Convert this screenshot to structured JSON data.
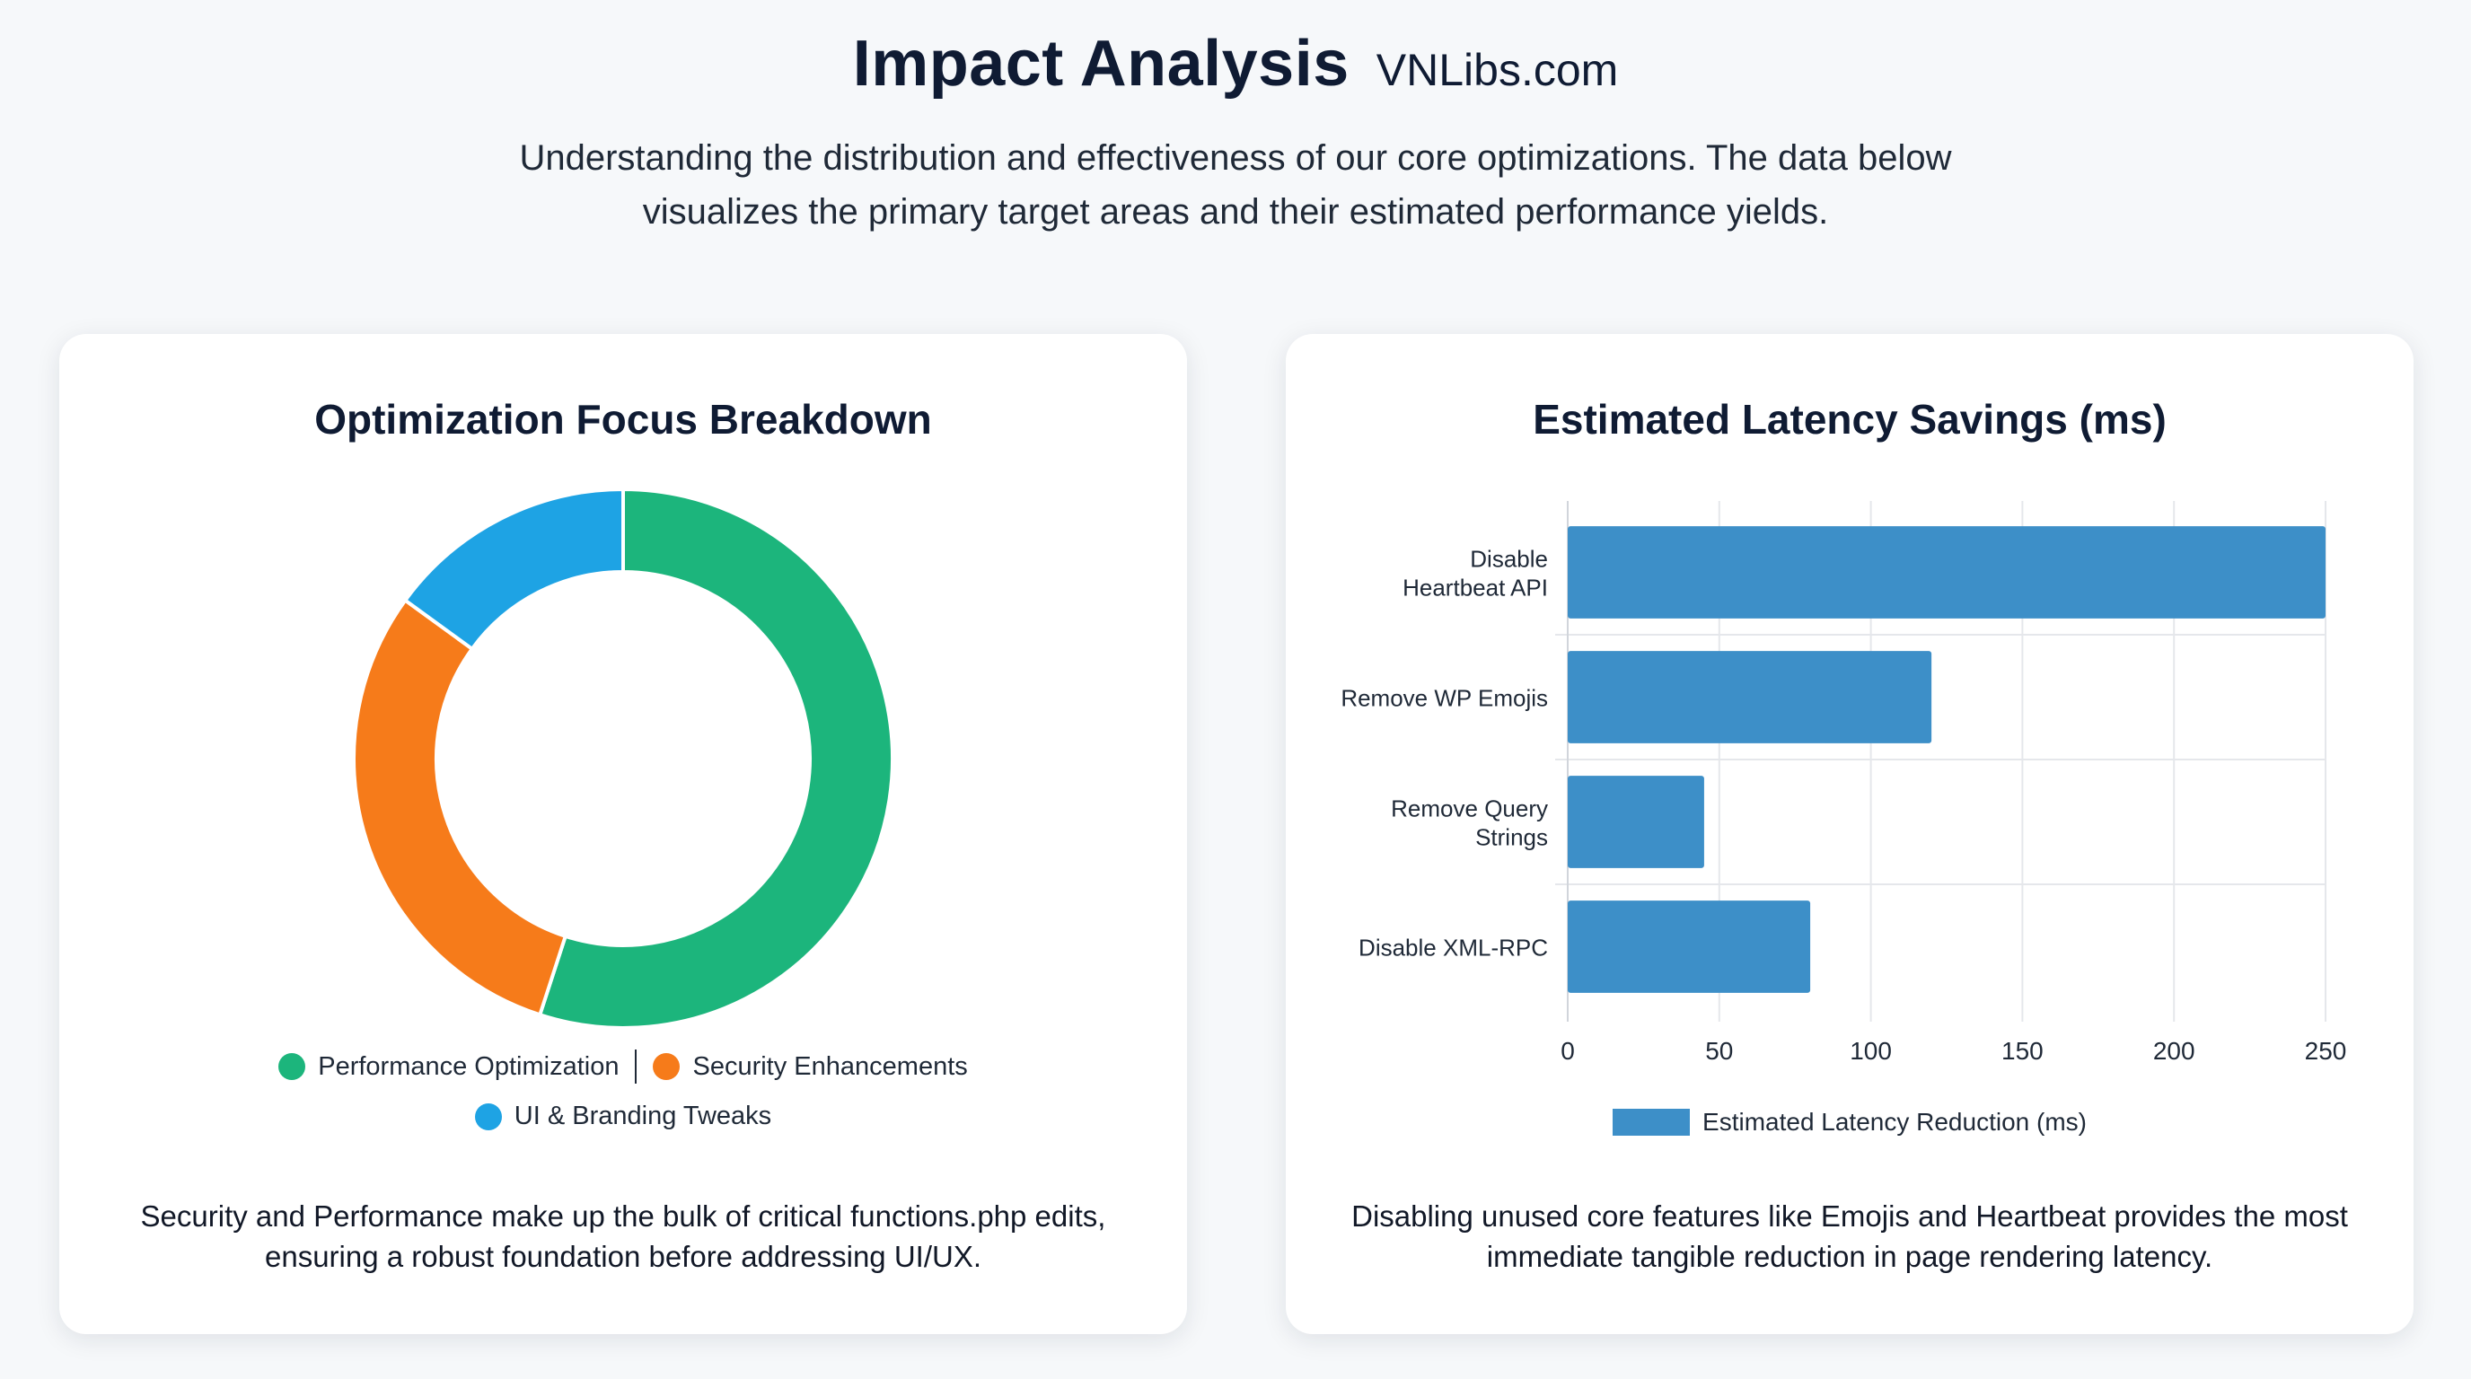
{
  "header": {
    "title": "Impact Analysis",
    "site": "VNLibs.com",
    "subtitle": "Understanding the distribution and effectiveness of our core optimizations. The data below visualizes the primary target areas and their estimated performance yields."
  },
  "left_card": {
    "title": "Optimization Focus Breakdown",
    "note": "Security and Performance make up the bulk of critical functions.php edits, ensuring a robust foundation before addressing UI/UX."
  },
  "right_card": {
    "title": "Estimated Latency Savings (ms)",
    "note": "Disabling unused core features like Emojis and Heartbeat provides the most immediate tangible reduction in page rendering latency."
  },
  "chart_data": [
    {
      "type": "pie",
      "title": "Optimization Focus Breakdown",
      "donut": true,
      "slices": [
        {
          "label": "Performance Optimization",
          "value": 55,
          "color": "#1cb57c"
        },
        {
          "label": "Security Enhancements",
          "value": 30,
          "color": "#f67b1a"
        },
        {
          "label": "UI & Branding Tweaks",
          "value": 15,
          "color": "#1ea3e4"
        }
      ],
      "legend": "bottom"
    },
    {
      "type": "bar",
      "orientation": "horizontal",
      "title": "Estimated Latency Savings (ms)",
      "categories": [
        [
          "Disable",
          "Heartbeat API"
        ],
        [
          "Remove WP Emojis"
        ],
        [
          "Remove Query",
          "Strings"
        ],
        [
          "Disable XML-RPC"
        ]
      ],
      "series": [
        {
          "name": "Estimated Latency Reduction (ms)",
          "values": [
            250,
            120,
            45,
            80
          ],
          "color": "#3d8fc8"
        }
      ],
      "xlim": [
        0,
        250
      ],
      "xticks": [
        0,
        50,
        100,
        150,
        200,
        250
      ],
      "grid": true,
      "legend": "bottom"
    }
  ]
}
